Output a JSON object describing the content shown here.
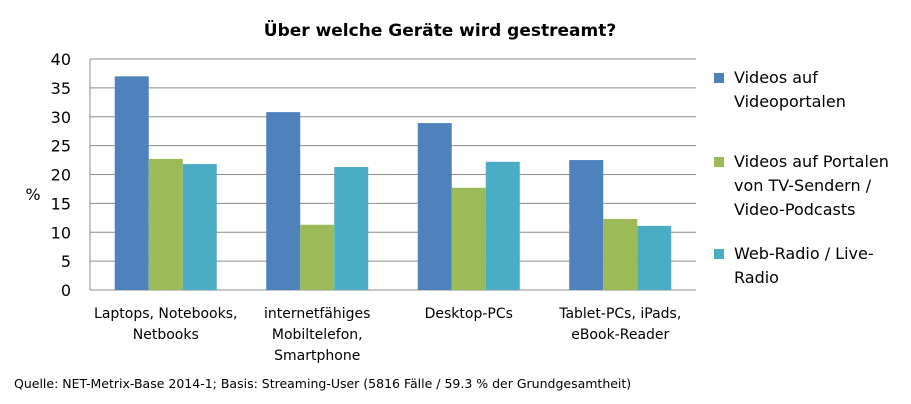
{
  "chart_data": {
    "type": "bar",
    "title": "Über welche Geräte wird gestreamt?",
    "ylabel": "%",
    "xlabel": "",
    "ylim": [
      0,
      40
    ],
    "yticks": [
      0,
      5,
      10,
      15,
      20,
      25,
      30,
      35,
      40
    ],
    "grid": true,
    "legend_position": "right",
    "categories": [
      [
        "Laptops, Notebooks,",
        "Netbooks"
      ],
      [
        "internetfähiges",
        "Mobiltelefon,",
        "Smartphone"
      ],
      [
        "Desktop-PCs"
      ],
      [
        "Tablet-PCs, iPads,",
        "eBook-Reader"
      ]
    ],
    "series": [
      {
        "name": [
          "Videos auf",
          "Videoportalen"
        ],
        "color": "#4F81BD",
        "values": [
          37,
          30.8,
          28.9,
          22.5
        ]
      },
      {
        "name": [
          "Videos auf Portalen",
          "von TV-Sendern /",
          "Video-Podcasts"
        ],
        "color": "#9BBB59",
        "values": [
          22.7,
          11.3,
          17.7,
          12.3
        ]
      },
      {
        "name": [
          "Web-Radio / Live-",
          "Radio"
        ],
        "color": "#4BACC6",
        "values": [
          21.8,
          21.3,
          22.2,
          11.1
        ]
      }
    ]
  },
  "source": "Quelle: NET-Metrix-Base 2014-1; Basis: Streaming-User (5816 Fälle / 59.3 % der Grundgesamtheit)"
}
